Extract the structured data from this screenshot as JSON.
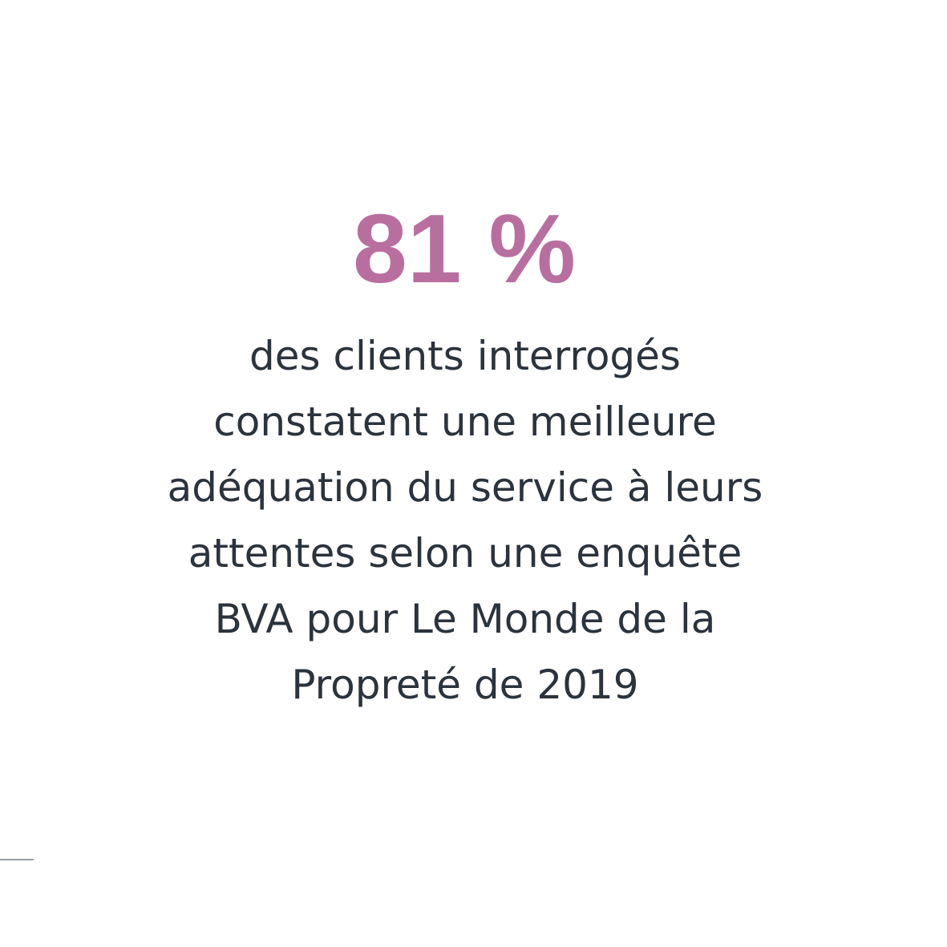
{
  "stat": "81 %",
  "description": [
    "des clients interrogés",
    "constatent une meilleure",
    "adéquation du service à leurs",
    "attentes selon une enquête",
    "BVA pour Le Monde de la",
    "Propreté de 2019"
  ]
}
